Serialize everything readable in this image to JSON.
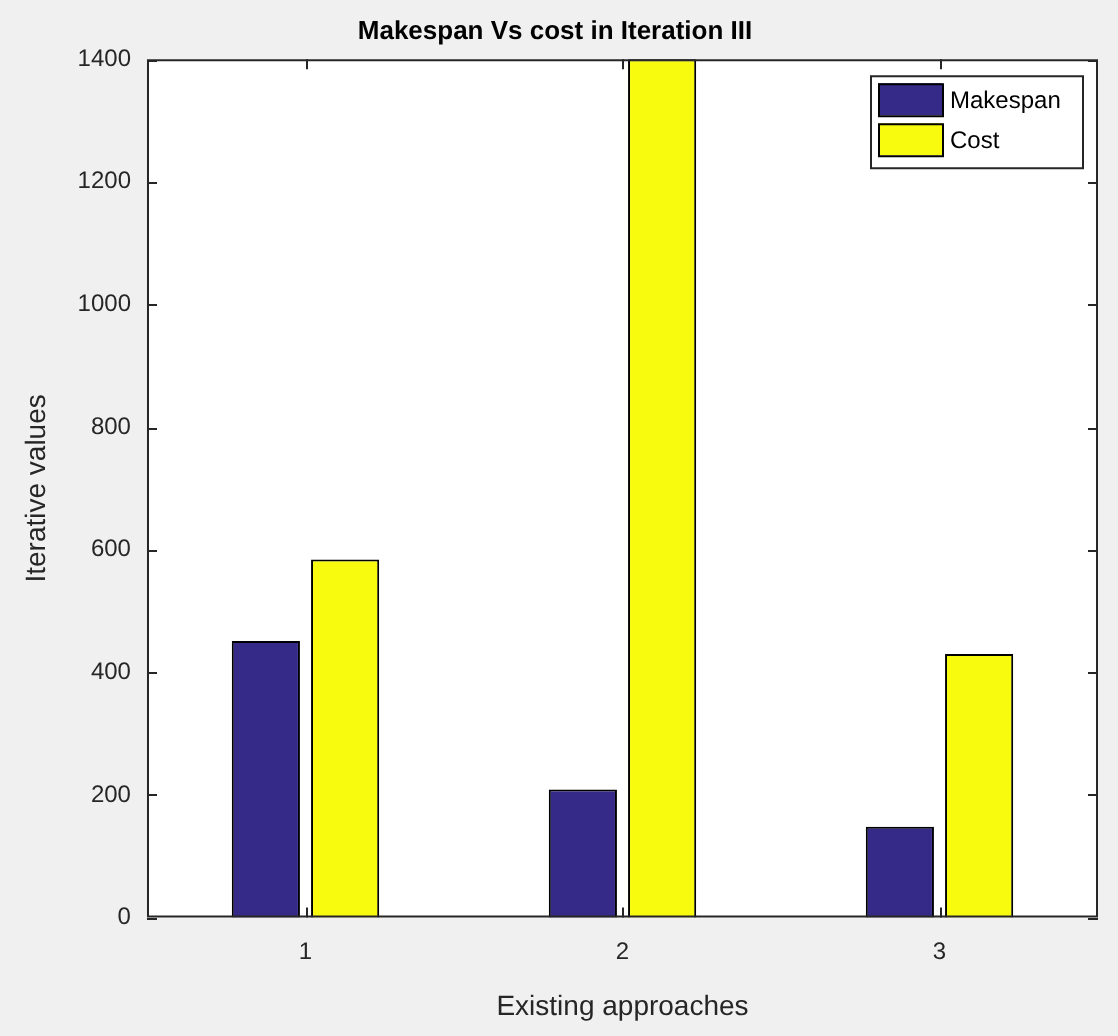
{
  "chart_data": {
    "type": "bar",
    "title": "Makespan Vs cost in Iteration III",
    "xlabel": "Existing approaches",
    "ylabel": "Iterative values",
    "categories": [
      "1",
      "2",
      "3"
    ],
    "series": [
      {
        "name": "Makespan",
        "color": "#352a87",
        "values": [
          451,
          209,
          148
        ]
      },
      {
        "name": "Cost",
        "color": "#f9fb0e",
        "values": [
          584,
          1400,
          430
        ]
      }
    ],
    "ylim": [
      0,
      1400
    ],
    "yticks": [
      0,
      200,
      400,
      600,
      800,
      1000,
      1200,
      1400
    ],
    "grid": false,
    "legend": "top right"
  }
}
